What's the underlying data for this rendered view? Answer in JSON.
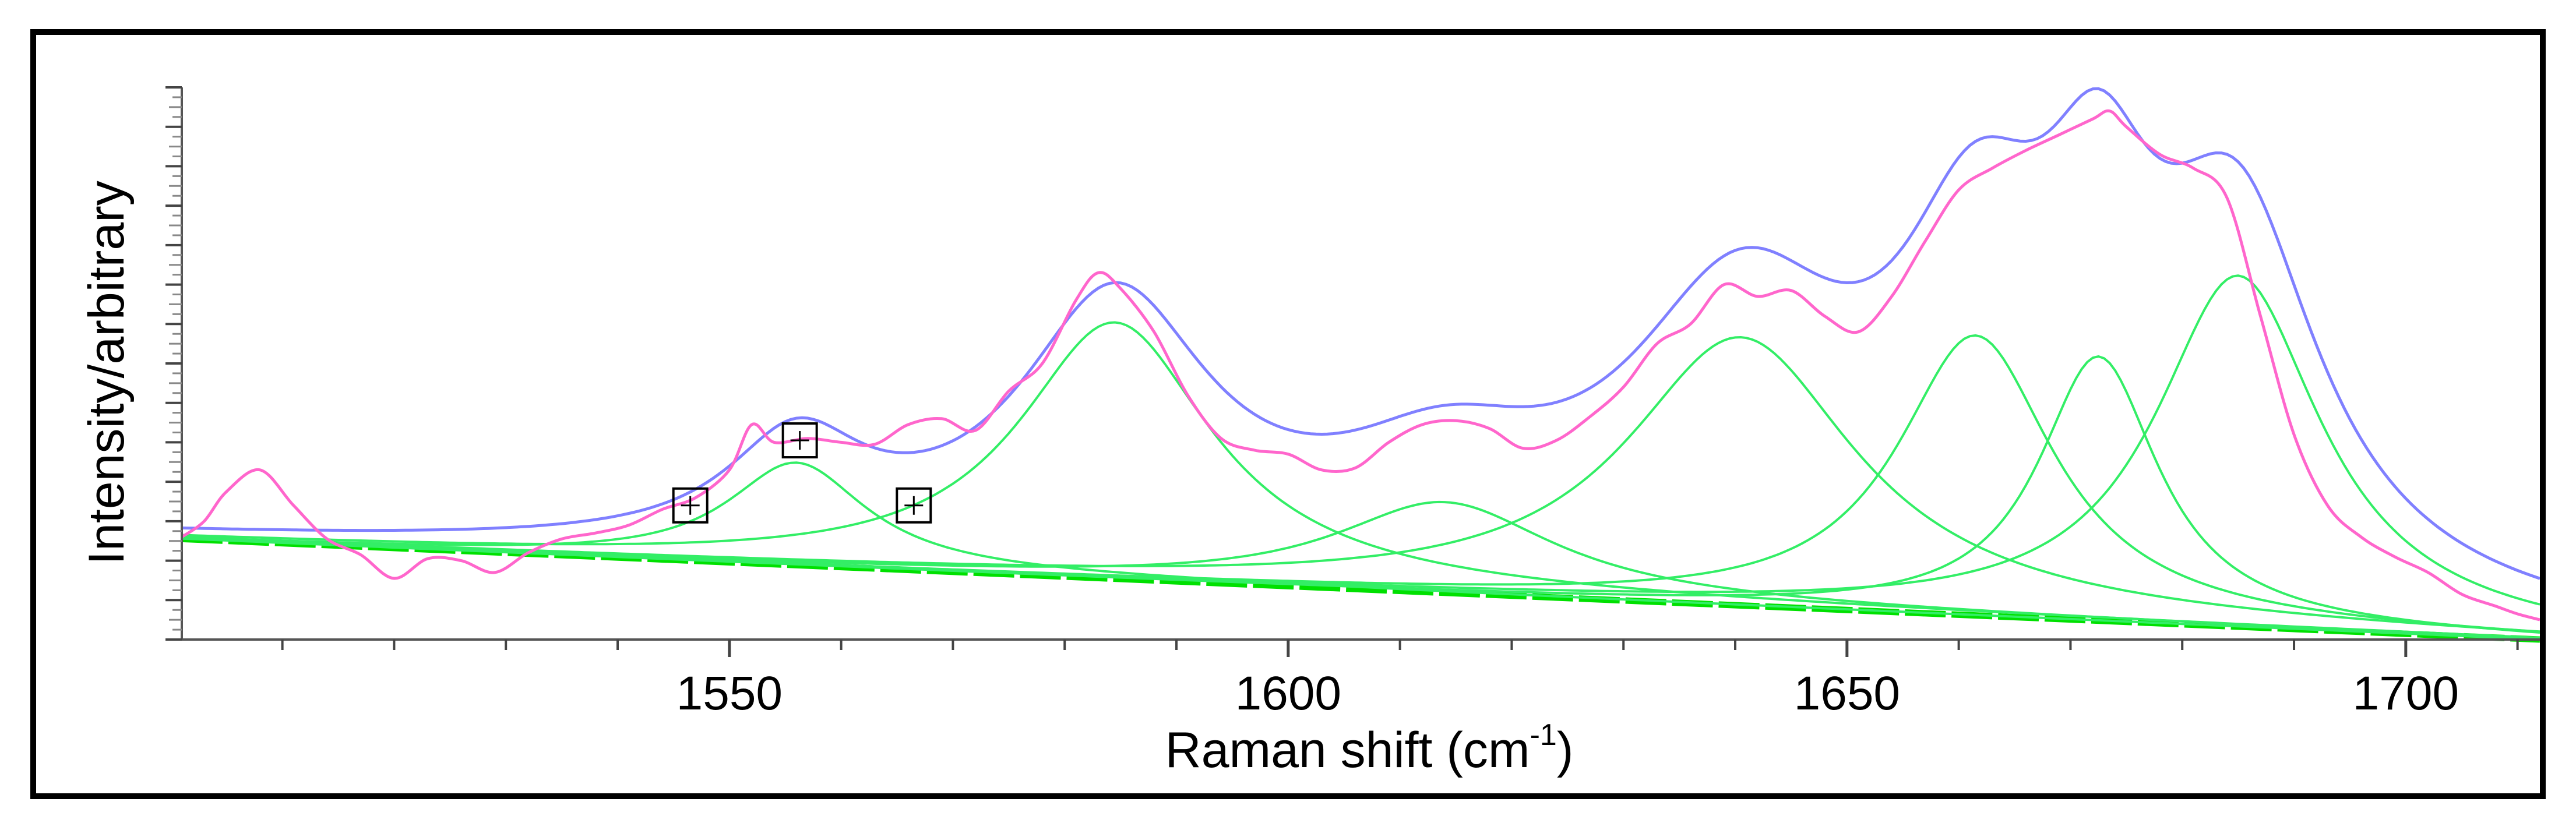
{
  "chart_data": {
    "type": "line",
    "xlabel": "Raman shift (cm",
    "xlabel_superscript": "-1",
    "xlabel_close": ")",
    "ylabel": "Intensity/arbitrary",
    "xlim": [
      1501,
      1712
    ],
    "ylim": [
      0,
      14
    ],
    "x_ticks": [
      1550,
      1600,
      1650,
      1700
    ],
    "y_tick_labels": "none",
    "grid": false,
    "colors": {
      "baseline": "#00e000",
      "components": "#33ee66",
      "fit": "#8080ff",
      "measured": "#ff66cc",
      "markers": "#000000"
    },
    "baseline": {
      "x": [
        1501,
        1712
      ],
      "y": [
        2.55,
        0.0
      ]
    },
    "components": [
      {
        "center": 1556,
        "height": 2.6,
        "fwhm": 15
      },
      {
        "center": 1584.5,
        "height": 6.5,
        "fwhm": 21
      },
      {
        "center": 1614,
        "height": 2.3,
        "fwhm": 24
      },
      {
        "center": 1640.5,
        "height": 6.8,
        "fwhm": 25
      },
      {
        "center": 1661.5,
        "height": 7.1,
        "fwhm": 17
      },
      {
        "center": 1672.5,
        "height": 6.7,
        "fwhm": 13
      },
      {
        "center": 1685,
        "height": 8.9,
        "fwhm": 18
      }
    ],
    "measured": {
      "x": [
        1501,
        1503,
        1505,
        1508,
        1511,
        1514,
        1517,
        1520,
        1523,
        1526,
        1529,
        1532,
        1535,
        1538,
        1541,
        1544,
        1547,
        1550,
        1552,
        1554,
        1557,
        1560,
        1563,
        1566,
        1569,
        1572,
        1575,
        1578,
        1581,
        1583,
        1585,
        1588,
        1591,
        1594,
        1597,
        1600,
        1603,
        1606,
        1609,
        1612,
        1615,
        1618,
        1621,
        1624,
        1627,
        1630,
        1633,
        1636,
        1639,
        1642,
        1645,
        1648,
        1651,
        1654,
        1657,
        1660,
        1663,
        1666,
        1669,
        1672,
        1673.5,
        1675,
        1678,
        1681,
        1684,
        1687,
        1690,
        1693,
        1696,
        1699,
        1702,
        1705,
        1708,
        1710,
        1712
      ],
      "y": [
        2.6,
        3.0,
        3.75,
        4.3,
        3.4,
        2.55,
        2.15,
        1.55,
        2.05,
        2.0,
        1.7,
        2.2,
        2.55,
        2.7,
        2.9,
        3.3,
        3.6,
        4.3,
        5.45,
        5.0,
        5.1,
        5.0,
        4.95,
        5.45,
        5.6,
        5.3,
        6.3,
        7.0,
        8.6,
        9.3,
        8.9,
        7.8,
        6.2,
        5.1,
        4.8,
        4.7,
        4.3,
        4.35,
        5.0,
        5.45,
        5.55,
        5.35,
        4.85,
        5.05,
        5.65,
        6.4,
        7.5,
        8.0,
        9.0,
        8.7,
        8.85,
        8.2,
        7.8,
        8.7,
        10.1,
        11.4,
        11.95,
        12.4,
        12.8,
        13.2,
        13.4,
        13.0,
        12.3,
        11.95,
        11.2,
        8.2,
        5.2,
        3.4,
        2.6,
        2.1,
        1.7,
        1.15,
        0.85,
        0.65,
        0.5
      ]
    },
    "markers": [
      {
        "x": 1546.5,
        "y": 3.4
      },
      {
        "x": 1556.3,
        "y": 5.05
      },
      {
        "x": 1566.5,
        "y": 3.4
      }
    ]
  }
}
